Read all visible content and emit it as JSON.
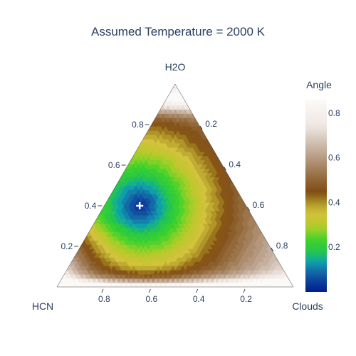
{
  "chart_data": {
    "type": "ternary-contour",
    "title": "Assumed Temperature = 2000 K",
    "axes": {
      "top": {
        "label": "H2O",
        "ticks": [
          "0.2",
          "0.4",
          "0.6",
          "0.8"
        ],
        "tick_values": [
          0.2,
          0.4,
          0.6,
          0.8
        ]
      },
      "left": {
        "label": "HCN",
        "ticks": [
          "0.8",
          "0.6",
          "0.4",
          "0.2"
        ],
        "tick_values": [
          0.8,
          0.6,
          0.4,
          0.2
        ]
      },
      "right": {
        "label": "Clouds",
        "ticks": [
          "0.2",
          "0.4",
          "0.6",
          "0.8"
        ],
        "tick_values": [
          0.2,
          0.4,
          0.6,
          0.8
        ]
      }
    },
    "colorbar": {
      "title": "Angle",
      "range": [
        0.0,
        0.86
      ],
      "ticks": [
        "0.2",
        "0.4",
        "0.6",
        "0.8"
      ],
      "tick_values": [
        0.2,
        0.4,
        0.6,
        0.8
      ]
    },
    "minimum_marker": {
      "symbol": "cross",
      "H2O": 0.4,
      "HCN": 0.45,
      "Clouds": 0.15
    }
  }
}
